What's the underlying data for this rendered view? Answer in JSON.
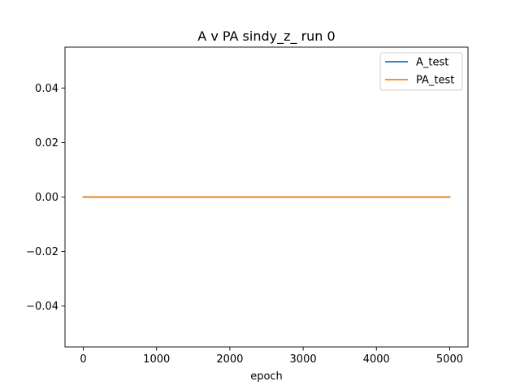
{
  "chart_data": {
    "type": "line",
    "title": "A v PA sindy_z_ run 0",
    "xlabel": "epoch",
    "ylabel": "",
    "xlim": [
      -250,
      5250
    ],
    "ylim": [
      -0.055,
      0.055
    ],
    "xticks": [
      0,
      1000,
      2000,
      3000,
      4000,
      5000
    ],
    "xtick_labels": [
      "0",
      "1000",
      "2000",
      "3000",
      "4000",
      "5000"
    ],
    "yticks": [
      -0.04,
      -0.02,
      0.0,
      0.02,
      0.04
    ],
    "ytick_labels": [
      "−0.04",
      "−0.02",
      "0.00",
      "0.02",
      "0.04"
    ],
    "grid": false,
    "legend_position": "top-right",
    "series": [
      {
        "name": "A_test",
        "color": "#1f77b4",
        "x": [
          0,
          5000
        ],
        "y": [
          0.0,
          0.0
        ]
      },
      {
        "name": "PA_test",
        "color": "#ff7f0e",
        "x": [
          0,
          5000
        ],
        "y": [
          0.0,
          0.0
        ]
      }
    ]
  }
}
